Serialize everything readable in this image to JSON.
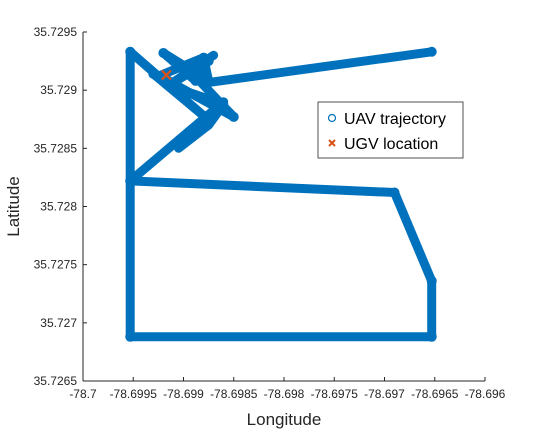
{
  "chart_data": {
    "type": "scatter",
    "xlabel": "Longitude",
    "ylabel": "Latitude",
    "xlim": [
      -78.7,
      -78.696
    ],
    "ylim": [
      35.7265,
      35.7295
    ],
    "xticks": [
      -78.7,
      -78.6995,
      -78.699,
      -78.6985,
      -78.698,
      -78.6975,
      -78.697,
      -78.6965,
      -78.696
    ],
    "yticks": [
      35.7265,
      35.727,
      35.7275,
      35.728,
      35.7285,
      35.729,
      35.7295
    ],
    "xtick_labels": [
      "-78.7",
      "-78.6995",
      "-78.699",
      "-78.6985",
      "-78.698",
      "-78.6975",
      "-78.697",
      "-78.6965",
      "-78.696"
    ],
    "ytick_labels": [
      "35.7265",
      "35.727",
      "35.7275",
      "35.728",
      "35.7285",
      "35.729",
      "35.7295"
    ],
    "grid": false,
    "legend_position": "right-center",
    "series": [
      {
        "name": "UAV trajectory",
        "marker": "circle",
        "color": "#0072BD",
        "x": [
          -78.69953,
          -78.69953,
          -78.69653,
          -78.69653,
          -78.6969,
          -78.69953,
          -78.69953,
          -78.6988,
          -78.6993,
          -78.69925,
          -78.6988,
          -78.69875,
          -78.6992,
          -78.69888,
          -78.6988,
          -78.69875,
          -78.69915,
          -78.69915,
          -78.6985,
          -78.6986,
          -78.69884,
          -78.6988,
          -78.69653
        ],
        "y": [
          35.72688,
          35.72822,
          35.72736,
          35.72688,
          35.72812,
          35.72822,
          35.72933,
          35.72878,
          35.72914,
          35.72912,
          35.72928,
          35.72908,
          35.72932,
          35.72908,
          35.72925,
          35.72925,
          35.72904,
          35.72908,
          35.72877,
          35.72886,
          35.72908,
          35.72906,
          35.72933
        ],
        "path": [
          [
            -78.69953,
            35.72688
          ],
          [
            -78.69653,
            35.72688
          ],
          [
            -78.69653,
            35.72736
          ],
          [
            -78.6969,
            35.72812
          ],
          [
            -78.69953,
            35.72822
          ],
          [
            -78.69953,
            35.72688
          ],
          [
            -78.69953,
            35.72933
          ],
          [
            -78.6988,
            35.72878
          ],
          [
            -78.6993,
            35.72914
          ],
          [
            -78.69925,
            35.72912
          ],
          [
            -78.6988,
            35.72928
          ],
          [
            -78.69875,
            35.72908
          ],
          [
            -78.6992,
            35.72932
          ],
          [
            -78.69888,
            35.72908
          ],
          [
            -78.6988,
            35.72925
          ],
          [
            -78.69875,
            35.72925
          ],
          [
            -78.69915,
            35.72904
          ],
          [
            -78.69915,
            35.72908
          ],
          [
            -78.6985,
            35.72877
          ],
          [
            -78.6986,
            35.72886
          ],
          [
            -78.69884,
            35.72908
          ],
          [
            -78.6988,
            35.72906
          ],
          [
            -78.69653,
            35.72933
          ]
        ],
        "branch": [
          [
            -78.69953,
            35.72822
          ],
          [
            -78.6986,
            35.7289
          ],
          [
            -78.69905,
            35.7285
          ],
          [
            -78.69875,
            35.7287
          ],
          [
            -78.6986,
            35.72888
          ],
          [
            -78.69915,
            35.72904
          ],
          [
            -78.6987,
            35.7293
          ]
        ]
      },
      {
        "name": "UGV location",
        "marker": "x",
        "color": "#D95319",
        "x": [
          -78.69917
        ],
        "y": [
          35.72913
        ]
      }
    ]
  }
}
